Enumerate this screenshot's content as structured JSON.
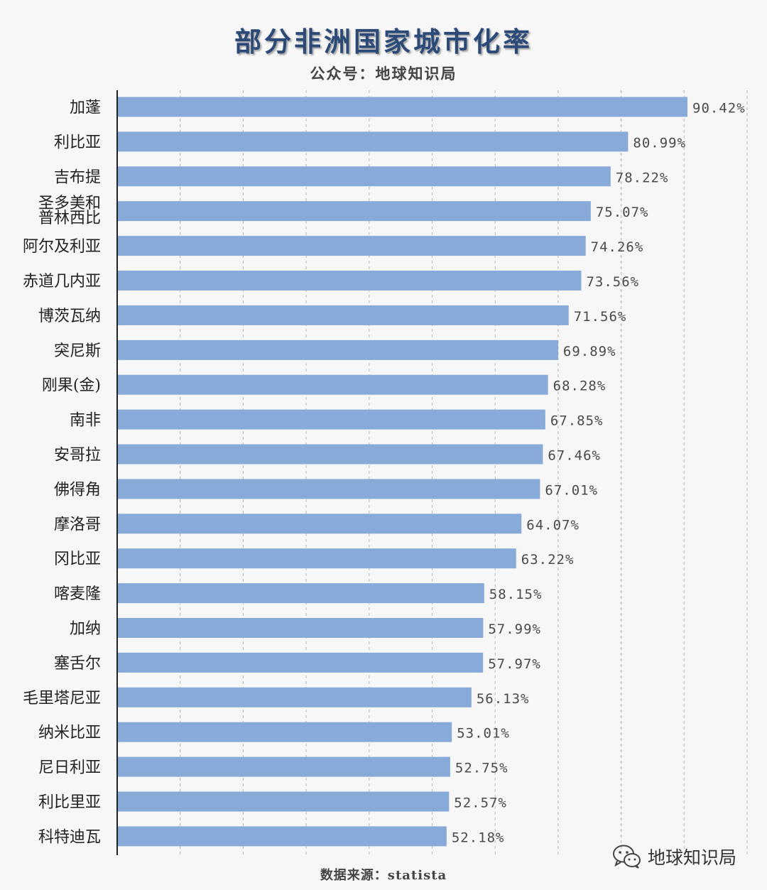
{
  "header": {
    "title": "部分非洲国家城市化率",
    "subtitle": "公众号：地球知识局"
  },
  "footer": {
    "source": "数据来源：statista"
  },
  "watermark": {
    "text": "地球知识局",
    "icon": "wechat-icon"
  },
  "colors": {
    "bar": "#88aad9",
    "grid": "#b8b8b8",
    "axis": "#222222",
    "label": "#222222",
    "value": "#4a4a4a"
  },
  "chart_data": {
    "type": "bar",
    "orientation": "horizontal",
    "title": "部分非洲国家城市化率",
    "subtitle": "公众号：地球知识局",
    "value_suffix": "%",
    "xlim": [
      0,
      100
    ],
    "grid": true,
    "categories": [
      [
        "加蓬"
      ],
      [
        "利比亚"
      ],
      [
        "吉布提"
      ],
      [
        "圣多美和",
        "普林西比"
      ],
      [
        "阿尔及利亚"
      ],
      [
        "赤道几内亚"
      ],
      [
        "博茨瓦纳"
      ],
      [
        "突尼斯"
      ],
      [
        "刚果(金)"
      ],
      [
        "南非"
      ],
      [
        "安哥拉"
      ],
      [
        "佛得角"
      ],
      [
        "摩洛哥"
      ],
      [
        "冈比亚"
      ],
      [
        "喀麦隆"
      ],
      [
        "加纳"
      ],
      [
        "塞舌尔"
      ],
      [
        "毛里塔尼亚"
      ],
      [
        "纳米比亚"
      ],
      [
        "尼日利亚"
      ],
      [
        "利比里亚"
      ],
      [
        "科特迪瓦"
      ]
    ],
    "values": [
      90.42,
      80.99,
      78.22,
      75.07,
      74.26,
      73.56,
      71.56,
      69.89,
      68.28,
      67.85,
      67.46,
      67.01,
      64.07,
      63.22,
      58.15,
      57.99,
      57.97,
      56.13,
      53.01,
      52.75,
      52.57,
      52.18
    ],
    "value_labels": [
      "90.42%",
      "80.99%",
      "78.22%",
      "75.07%",
      "74.26%",
      "73.56%",
      "71.56%",
      "69.89%",
      "68.28%",
      "67.85%",
      "67.46%",
      "67.01%",
      "64.07%",
      "63.22%",
      "58.15%",
      "57.99%",
      "57.97%",
      "56.13%",
      "53.01%",
      "52.75%",
      "52.57%",
      "52.18%"
    ]
  }
}
